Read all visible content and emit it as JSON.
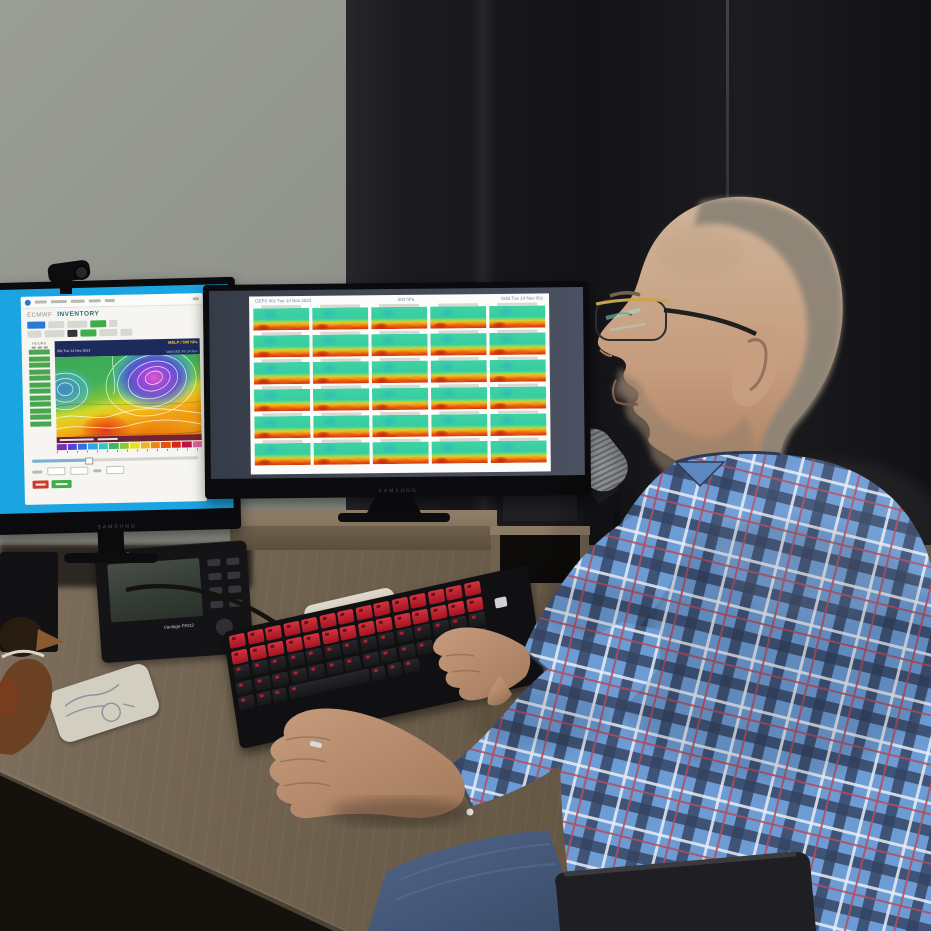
{
  "scene": {
    "description": "Man in a blue plaid shirt at a corner desk studying weather model charts on two monitors",
    "wall_color": "#90938b",
    "curtain_color": "#1a1a1e",
    "desk_color": "#6f6152",
    "screen_blue": "#1ba4e2"
  },
  "left_monitor": {
    "brand": "SAMSUNG",
    "page": {
      "app_name": "ECMWF",
      "page_title": "INVENTORY",
      "sidebar_title": "HOURS",
      "hours_rows": 12,
      "map": {
        "run_label": "00z Tue 14 Nov 2023",
        "product_label": "MSLP / 500 hPa",
        "valid_label": "Valid 00Z Fri 24 Nov",
        "colorbar_colors": [
          "#7c2fae",
          "#5a3fd8",
          "#2f6fe0",
          "#2fa8e0",
          "#2fc8c8",
          "#3ab868",
          "#8fc832",
          "#e8e020",
          "#f0b41e",
          "#ee8414",
          "#e65410",
          "#d42810",
          "#b81448",
          "#e060a0"
        ]
      }
    }
  },
  "right_monitor": {
    "brand": "SAMSUNG",
    "header": {
      "run_label": "GEFS 00z Tue 14 Nov 2023",
      "product_label": "500 hPa",
      "valid_label": "Valid Tue 14 Nov 00z"
    },
    "grid": {
      "rows": 6,
      "cols": 5
    }
  },
  "desk": {
    "console": {
      "brand": "DAVIS",
      "model": "Vantage PRO2"
    },
    "keyboard": {
      "rows": 5,
      "keys_per_row": 14,
      "accent_color": "#c22230"
    }
  },
  "person": {
    "shirt_base": "#6d9bd3",
    "plaid_colors": [
      "#33415f",
      "#e9edf3",
      "#b34d5e"
    ],
    "jeans_color": "#46597a"
  }
}
